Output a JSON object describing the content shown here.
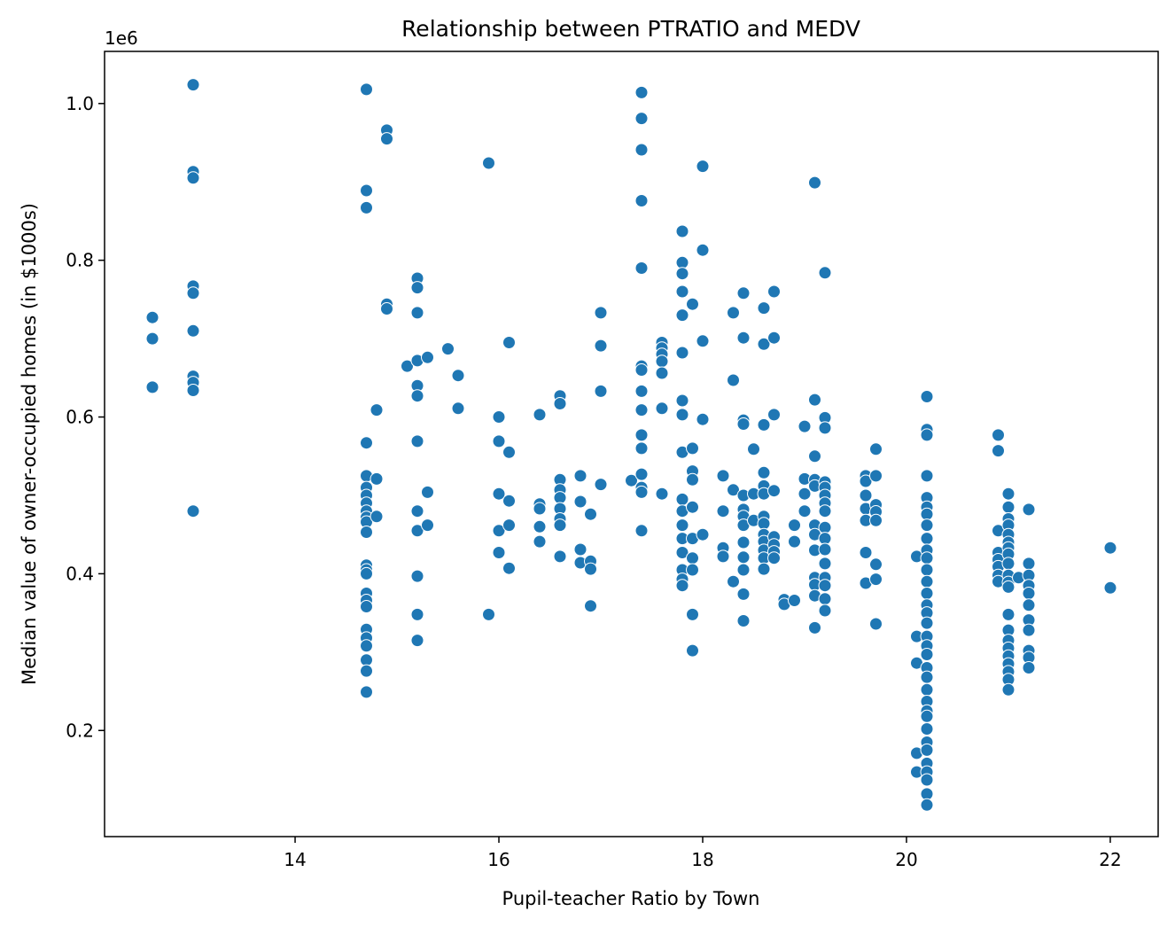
{
  "chart_data": {
    "type": "scatter",
    "title": "Relationship between PTRATIO and MEDV",
    "xlabel": "Pupil-teacher Ratio by Town",
    "ylabel": "Median value of owner-occupied homes (in $1000s)",
    "y_offset_text": "1e6",
    "xlim": [
      12.13,
      22.47
    ],
    "ylim": [
      0.0646,
      1.0665
    ],
    "xticks": [
      14,
      16,
      18,
      20,
      22
    ],
    "xtick_labels": [
      "14",
      "16",
      "18",
      "20",
      "22"
    ],
    "yticks": [
      0.2,
      0.4,
      0.6,
      0.8,
      1.0
    ],
    "ytick_labels": [
      "0.2",
      "0.4",
      "0.6",
      "0.8",
      "1.0"
    ],
    "grid": false,
    "legend": "none",
    "marker_color": "#1f77b4",
    "y_unit_note": "y values in units of 1e6",
    "points": [
      [
        12.6,
        0.727
      ],
      [
        12.6,
        0.7
      ],
      [
        12.6,
        0.638
      ],
      [
        13.0,
        1.024
      ],
      [
        13.0,
        0.913
      ],
      [
        13.0,
        0.905
      ],
      [
        13.0,
        0.767
      ],
      [
        13.0,
        0.758
      ],
      [
        13.0,
        0.71
      ],
      [
        13.0,
        0.652
      ],
      [
        13.0,
        0.644
      ],
      [
        13.0,
        0.634
      ],
      [
        13.0,
        0.48
      ],
      [
        14.7,
        1.018
      ],
      [
        14.7,
        0.889
      ],
      [
        14.7,
        0.867
      ],
      [
        14.7,
        0.567
      ],
      [
        14.7,
        0.525
      ],
      [
        14.7,
        0.51
      ],
      [
        14.7,
        0.5
      ],
      [
        14.7,
        0.49
      ],
      [
        14.7,
        0.48
      ],
      [
        14.7,
        0.472
      ],
      [
        14.7,
        0.466
      ],
      [
        14.7,
        0.453
      ],
      [
        14.7,
        0.411
      ],
      [
        14.7,
        0.405
      ],
      [
        14.7,
        0.4
      ],
      [
        14.7,
        0.375
      ],
      [
        14.7,
        0.366
      ],
      [
        14.7,
        0.358
      ],
      [
        14.7,
        0.329
      ],
      [
        14.7,
        0.318
      ],
      [
        14.7,
        0.308
      ],
      [
        14.7,
        0.29
      ],
      [
        14.7,
        0.276
      ],
      [
        14.7,
        0.249
      ],
      [
        14.8,
        0.609
      ],
      [
        14.8,
        0.521
      ],
      [
        14.8,
        0.473
      ],
      [
        14.9,
        0.966
      ],
      [
        14.9,
        0.955
      ],
      [
        14.9,
        0.744
      ],
      [
        14.9,
        0.738
      ],
      [
        15.1,
        0.665
      ],
      [
        15.2,
        0.777
      ],
      [
        15.2,
        0.765
      ],
      [
        15.2,
        0.733
      ],
      [
        15.2,
        0.672
      ],
      [
        15.2,
        0.64
      ],
      [
        15.2,
        0.627
      ],
      [
        15.2,
        0.569
      ],
      [
        15.2,
        0.48
      ],
      [
        15.2,
        0.455
      ],
      [
        15.2,
        0.397
      ],
      [
        15.2,
        0.348
      ],
      [
        15.2,
        0.315
      ],
      [
        15.3,
        0.676
      ],
      [
        15.3,
        0.504
      ],
      [
        15.3,
        0.462
      ],
      [
        15.5,
        0.687
      ],
      [
        15.6,
        0.653
      ],
      [
        15.6,
        0.611
      ],
      [
        15.9,
        0.924
      ],
      [
        15.9,
        0.348
      ],
      [
        16.0,
        0.6
      ],
      [
        16.0,
        0.569
      ],
      [
        16.0,
        0.502
      ],
      [
        16.0,
        0.455
      ],
      [
        16.0,
        0.427
      ],
      [
        16.1,
        0.695
      ],
      [
        16.1,
        0.555
      ],
      [
        16.1,
        0.493
      ],
      [
        16.1,
        0.462
      ],
      [
        16.1,
        0.407
      ],
      [
        16.4,
        0.603
      ],
      [
        16.4,
        0.489
      ],
      [
        16.4,
        0.483
      ],
      [
        16.4,
        0.46
      ],
      [
        16.4,
        0.441
      ],
      [
        16.6,
        0.627
      ],
      [
        16.6,
        0.617
      ],
      [
        16.6,
        0.52
      ],
      [
        16.6,
        0.507
      ],
      [
        16.6,
        0.497
      ],
      [
        16.6,
        0.483
      ],
      [
        16.6,
        0.47
      ],
      [
        16.6,
        0.462
      ],
      [
        16.6,
        0.422
      ],
      [
        16.8,
        0.525
      ],
      [
        16.8,
        0.492
      ],
      [
        16.8,
        0.431
      ],
      [
        16.8,
        0.414
      ],
      [
        16.9,
        0.476
      ],
      [
        16.9,
        0.416
      ],
      [
        16.9,
        0.406
      ],
      [
        16.9,
        0.359
      ],
      [
        17.0,
        0.733
      ],
      [
        17.0,
        0.691
      ],
      [
        17.0,
        0.633
      ],
      [
        17.0,
        0.514
      ],
      [
        17.3,
        0.519
      ],
      [
        17.4,
        1.014
      ],
      [
        17.4,
        0.981
      ],
      [
        17.4,
        0.941
      ],
      [
        17.4,
        0.876
      ],
      [
        17.4,
        0.79
      ],
      [
        17.4,
        0.665
      ],
      [
        17.4,
        0.66
      ],
      [
        17.4,
        0.633
      ],
      [
        17.4,
        0.609
      ],
      [
        17.4,
        0.577
      ],
      [
        17.4,
        0.56
      ],
      [
        17.4,
        0.527
      ],
      [
        17.4,
        0.51
      ],
      [
        17.4,
        0.504
      ],
      [
        17.4,
        0.455
      ],
      [
        17.6,
        0.695
      ],
      [
        17.6,
        0.688
      ],
      [
        17.6,
        0.68
      ],
      [
        17.6,
        0.671
      ],
      [
        17.6,
        0.656
      ],
      [
        17.6,
        0.611
      ],
      [
        17.6,
        0.502
      ],
      [
        17.8,
        0.837
      ],
      [
        17.8,
        0.797
      ],
      [
        17.8,
        0.783
      ],
      [
        17.8,
        0.76
      ],
      [
        17.8,
        0.73
      ],
      [
        17.8,
        0.682
      ],
      [
        17.8,
        0.621
      ],
      [
        17.8,
        0.603
      ],
      [
        17.8,
        0.555
      ],
      [
        17.8,
        0.495
      ],
      [
        17.8,
        0.48
      ],
      [
        17.8,
        0.462
      ],
      [
        17.8,
        0.445
      ],
      [
        17.8,
        0.427
      ],
      [
        17.8,
        0.405
      ],
      [
        17.8,
        0.393
      ],
      [
        17.8,
        0.385
      ],
      [
        17.9,
        0.744
      ],
      [
        17.9,
        0.56
      ],
      [
        17.9,
        0.531
      ],
      [
        17.9,
        0.52
      ],
      [
        17.9,
        0.485
      ],
      [
        17.9,
        0.445
      ],
      [
        17.9,
        0.42
      ],
      [
        17.9,
        0.405
      ],
      [
        17.9,
        0.348
      ],
      [
        17.9,
        0.302
      ],
      [
        18.0,
        0.92
      ],
      [
        18.0,
        0.813
      ],
      [
        18.0,
        0.697
      ],
      [
        18.0,
        0.597
      ],
      [
        18.0,
        0.45
      ],
      [
        18.2,
        0.525
      ],
      [
        18.2,
        0.48
      ],
      [
        18.2,
        0.433
      ],
      [
        18.2,
        0.422
      ],
      [
        18.3,
        0.733
      ],
      [
        18.3,
        0.647
      ],
      [
        18.3,
        0.507
      ],
      [
        18.3,
        0.39
      ],
      [
        18.4,
        0.758
      ],
      [
        18.4,
        0.701
      ],
      [
        18.4,
        0.596
      ],
      [
        18.4,
        0.591
      ],
      [
        18.4,
        0.5
      ],
      [
        18.4,
        0.482
      ],
      [
        18.4,
        0.473
      ],
      [
        18.4,
        0.462
      ],
      [
        18.4,
        0.44
      ],
      [
        18.4,
        0.421
      ],
      [
        18.4,
        0.405
      ],
      [
        18.4,
        0.374
      ],
      [
        18.4,
        0.34
      ],
      [
        18.5,
        0.559
      ],
      [
        18.5,
        0.502
      ],
      [
        18.5,
        0.468
      ],
      [
        18.6,
        0.739
      ],
      [
        18.6,
        0.693
      ],
      [
        18.6,
        0.59
      ],
      [
        18.6,
        0.529
      ],
      [
        18.6,
        0.512
      ],
      [
        18.6,
        0.502
      ],
      [
        18.6,
        0.473
      ],
      [
        18.6,
        0.464
      ],
      [
        18.6,
        0.45
      ],
      [
        18.6,
        0.441
      ],
      [
        18.6,
        0.43
      ],
      [
        18.6,
        0.42
      ],
      [
        18.6,
        0.406
      ],
      [
        18.7,
        0.76
      ],
      [
        18.7,
        0.701
      ],
      [
        18.7,
        0.603
      ],
      [
        18.7,
        0.506
      ],
      [
        18.7,
        0.447
      ],
      [
        18.7,
        0.437
      ],
      [
        18.7,
        0.428
      ],
      [
        18.7,
        0.42
      ],
      [
        18.8,
        0.367
      ],
      [
        18.8,
        0.361
      ],
      [
        18.9,
        0.462
      ],
      [
        18.9,
        0.441
      ],
      [
        18.9,
        0.366
      ],
      [
        19.0,
        0.588
      ],
      [
        19.0,
        0.521
      ],
      [
        19.0,
        0.502
      ],
      [
        19.0,
        0.48
      ],
      [
        19.1,
        0.899
      ],
      [
        19.1,
        0.622
      ],
      [
        19.1,
        0.55
      ],
      [
        19.1,
        0.52
      ],
      [
        19.1,
        0.512
      ],
      [
        19.1,
        0.462
      ],
      [
        19.1,
        0.45
      ],
      [
        19.1,
        0.43
      ],
      [
        19.1,
        0.395
      ],
      [
        19.1,
        0.386
      ],
      [
        19.1,
        0.372
      ],
      [
        19.1,
        0.331
      ],
      [
        19.2,
        0.784
      ],
      [
        19.2,
        0.599
      ],
      [
        19.2,
        0.586
      ],
      [
        19.2,
        0.517
      ],
      [
        19.2,
        0.51
      ],
      [
        19.2,
        0.5
      ],
      [
        19.2,
        0.49
      ],
      [
        19.2,
        0.48
      ],
      [
        19.2,
        0.459
      ],
      [
        19.2,
        0.445
      ],
      [
        19.2,
        0.431
      ],
      [
        19.2,
        0.413
      ],
      [
        19.2,
        0.395
      ],
      [
        19.2,
        0.385
      ],
      [
        19.2,
        0.368
      ],
      [
        19.2,
        0.353
      ],
      [
        19.6,
        0.525
      ],
      [
        19.6,
        0.518
      ],
      [
        19.6,
        0.5
      ],
      [
        19.6,
        0.483
      ],
      [
        19.6,
        0.468
      ],
      [
        19.6,
        0.427
      ],
      [
        19.6,
        0.388
      ],
      [
        19.7,
        0.559
      ],
      [
        19.7,
        0.525
      ],
      [
        19.7,
        0.488
      ],
      [
        19.7,
        0.479
      ],
      [
        19.7,
        0.468
      ],
      [
        19.7,
        0.412
      ],
      [
        19.7,
        0.393
      ],
      [
        19.7,
        0.336
      ],
      [
        20.1,
        0.422
      ],
      [
        20.1,
        0.32
      ],
      [
        20.1,
        0.286
      ],
      [
        20.1,
        0.171
      ],
      [
        20.1,
        0.147
      ],
      [
        20.2,
        0.626
      ],
      [
        20.2,
        0.584
      ],
      [
        20.2,
        0.577
      ],
      [
        20.2,
        0.525
      ],
      [
        20.2,
        0.497
      ],
      [
        20.2,
        0.485
      ],
      [
        20.2,
        0.476
      ],
      [
        20.2,
        0.462
      ],
      [
        20.2,
        0.445
      ],
      [
        20.2,
        0.43
      ],
      [
        20.2,
        0.42
      ],
      [
        20.2,
        0.405
      ],
      [
        20.2,
        0.39
      ],
      [
        20.2,
        0.375
      ],
      [
        20.2,
        0.36
      ],
      [
        20.2,
        0.35
      ],
      [
        20.2,
        0.337
      ],
      [
        20.2,
        0.32
      ],
      [
        20.2,
        0.308
      ],
      [
        20.2,
        0.297
      ],
      [
        20.2,
        0.28
      ],
      [
        20.2,
        0.268
      ],
      [
        20.2,
        0.252
      ],
      [
        20.2,
        0.237
      ],
      [
        20.2,
        0.225
      ],
      [
        20.2,
        0.218
      ],
      [
        20.2,
        0.202
      ],
      [
        20.2,
        0.185
      ],
      [
        20.2,
        0.175
      ],
      [
        20.2,
        0.158
      ],
      [
        20.2,
        0.147
      ],
      [
        20.2,
        0.137
      ],
      [
        20.2,
        0.119
      ],
      [
        20.2,
        0.105
      ],
      [
        20.9,
        0.577
      ],
      [
        20.9,
        0.557
      ],
      [
        20.9,
        0.455
      ],
      [
        20.9,
        0.427
      ],
      [
        20.9,
        0.418
      ],
      [
        20.9,
        0.409
      ],
      [
        20.9,
        0.398
      ],
      [
        20.9,
        0.39
      ],
      [
        21.0,
        0.502
      ],
      [
        21.0,
        0.485
      ],
      [
        21.0,
        0.47
      ],
      [
        21.0,
        0.462
      ],
      [
        21.0,
        0.45
      ],
      [
        21.0,
        0.44
      ],
      [
        21.0,
        0.433
      ],
      [
        21.0,
        0.425
      ],
      [
        21.0,
        0.413
      ],
      [
        21.0,
        0.398
      ],
      [
        21.0,
        0.389
      ],
      [
        21.0,
        0.383
      ],
      [
        21.0,
        0.348
      ],
      [
        21.0,
        0.328
      ],
      [
        21.0,
        0.315
      ],
      [
        21.0,
        0.305
      ],
      [
        21.0,
        0.295
      ],
      [
        21.0,
        0.285
      ],
      [
        21.0,
        0.275
      ],
      [
        21.0,
        0.265
      ],
      [
        21.0,
        0.252
      ],
      [
        21.1,
        0.395
      ],
      [
        21.2,
        0.482
      ],
      [
        21.2,
        0.413
      ],
      [
        21.2,
        0.398
      ],
      [
        21.2,
        0.385
      ],
      [
        21.2,
        0.375
      ],
      [
        21.2,
        0.36
      ],
      [
        21.2,
        0.341
      ],
      [
        21.2,
        0.328
      ],
      [
        21.2,
        0.302
      ],
      [
        21.2,
        0.293
      ],
      [
        21.2,
        0.28
      ],
      [
        22.0,
        0.433
      ],
      [
        22.0,
        0.382
      ]
    ]
  }
}
